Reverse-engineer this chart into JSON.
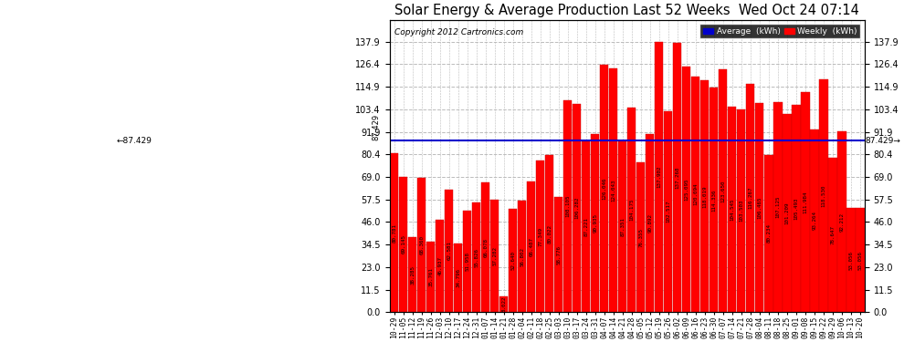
{
  "title": "Solar Energy & Average Production Last 52 Weeks  Wed Oct 24 07:14",
  "copyright": "Copyright 2012 Cartronics.com",
  "average_value": 87.429,
  "bar_color": "#ff0000",
  "average_line_color": "#0000cc",
  "ylim": [
    0,
    149
  ],
  "yticks": [
    0.0,
    11.5,
    23.0,
    34.5,
    46.0,
    57.5,
    69.0,
    80.4,
    91.9,
    103.4,
    114.9,
    126.4,
    137.9
  ],
  "background_color": "#ffffff",
  "grid_color": "#bbbbbb",
  "legend_avg_color": "#0000cc",
  "legend_weekly_color": "#ff0000",
  "categories": [
    "10-29",
    "11-05",
    "11-12",
    "11-19",
    "11-26",
    "12-03",
    "12-10",
    "12-17",
    "12-24",
    "12-31",
    "01-07",
    "01-14",
    "01-21",
    "01-28",
    "02-04",
    "02-11",
    "02-18",
    "02-25",
    "03-03",
    "03-10",
    "03-17",
    "03-24",
    "03-31",
    "04-07",
    "04-14",
    "04-21",
    "04-28",
    "05-05",
    "05-12",
    "05-19",
    "05-26",
    "06-02",
    "06-09",
    "06-16",
    "06-23",
    "06-30",
    "07-07",
    "07-14",
    "07-21",
    "07-28",
    "08-04",
    "08-11",
    "08-18",
    "08-25",
    "09-01",
    "09-08",
    "09-15",
    "09-22",
    "09-29",
    "10-06",
    "10-13",
    "10-20"
  ],
  "weekly_values": [
    80.781,
    69.145,
    38.285,
    68.36,
    35.761,
    46.937,
    62.581,
    34.796,
    51.958,
    55.826,
    66.078,
    57.282,
    8.022,
    52.64,
    56.802,
    66.487,
    77.349,
    80.022,
    58.776,
    108.105,
    106.282,
    87.221,
    90.935,
    126.046,
    124.043,
    87.351,
    104.175,
    76.355,
    90.892,
    137.902,
    102.517,
    137.268,
    125.095,
    120.094,
    118.019,
    114.336,
    123.65,
    104.545,
    103.503,
    116.267,
    106.465,
    80.234,
    107.125,
    101.209,
    105.493,
    111.984,
    93.264,
    118.53,
    78.647,
    92.212,
    53.056,
    53.056
  ]
}
